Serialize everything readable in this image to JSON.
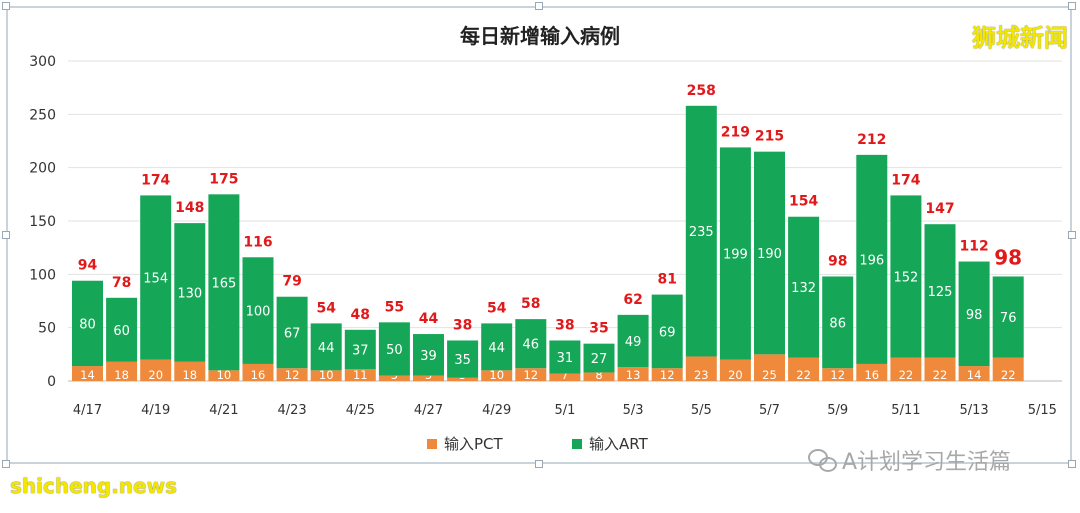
{
  "chart_data": {
    "type": "bar",
    "stacked": true,
    "title": "每日新增输入病例",
    "categories": [
      "4/17",
      "4/18",
      "4/19",
      "4/20",
      "4/21",
      "4/22",
      "4/23",
      "4/24",
      "4/25",
      "4/26",
      "4/27",
      "4/28",
      "4/29",
      "4/30",
      "5/1",
      "5/2",
      "5/3",
      "5/4",
      "5/5",
      "5/6",
      "5/7",
      "5/8",
      "5/9",
      "5/10",
      "5/11",
      "5/12",
      "5/13",
      "5/14",
      "5/15"
    ],
    "x_tick_labels": [
      "4/17",
      "",
      "4/19",
      "",
      "4/21",
      "",
      "4/23",
      "",
      "4/25",
      "",
      "4/27",
      "",
      "4/29",
      "",
      "5/1",
      "",
      "5/3",
      "",
      "5/5",
      "",
      "5/7",
      "",
      "5/9",
      "",
      "5/11",
      "",
      "5/13",
      "",
      "5/15"
    ],
    "series": [
      {
        "name": "输入PCT",
        "color": "#ef8a3c",
        "values": [
          14,
          18,
          20,
          18,
          10,
          16,
          12,
          10,
          11,
          5,
          5,
          3,
          10,
          12,
          7,
          8,
          13,
          12,
          23,
          20,
          25,
          22,
          12,
          16,
          22,
          22,
          14,
          22,
          null
        ]
      },
      {
        "name": "输入ART",
        "color": "#16a657",
        "values": [
          80,
          60,
          154,
          130,
          165,
          100,
          67,
          44,
          37,
          50,
          39,
          35,
          44,
          46,
          31,
          27,
          49,
          69,
          235,
          199,
          190,
          132,
          86,
          196,
          152,
          125,
          98,
          76,
          null
        ]
      }
    ],
    "totals": [
      "94",
      "78",
      "174",
      "148",
      "175",
      "116",
      "79",
      "54",
      "48",
      "55",
      "44",
      "38",
      "54",
      "58",
      "38",
      "35",
      "62",
      "81",
      "258",
      "219",
      "215",
      "154",
      "98",
      "212",
      "174",
      "147",
      "112",
      "98",
      ""
    ],
    "ylim": [
      0,
      300
    ],
    "y_ticks": [
      0,
      50,
      100,
      150,
      200,
      250,
      300
    ],
    "grid": true,
    "legend_position": "bottom-center",
    "xlabel": "",
    "ylabel": "",
    "total_label_color": "#e0191b",
    "highlight_last_total": true
  },
  "watermarks": {
    "top_right": "狮城新闻",
    "bottom_left": "shicheng.news",
    "bottom_right": "A计划学习生活篇"
  }
}
